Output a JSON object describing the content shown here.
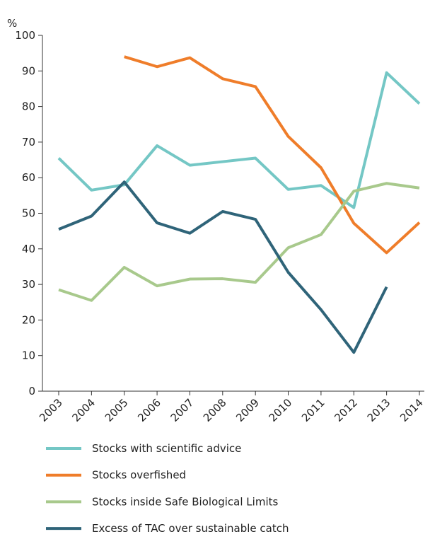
{
  "chart_data": {
    "type": "line",
    "y_label": "%",
    "categories": [
      "2003",
      "2004",
      "2005",
      "2006",
      "2007",
      "2008",
      "2009",
      "2010",
      "2011",
      "2012",
      "2013",
      "2014"
    ],
    "series": [
      {
        "name": "Stocks with scientific advice",
        "color": "#74c7c5",
        "values": [
          65.5,
          56.5,
          58,
          69,
          63.5,
          64.5,
          65.5,
          56.7,
          57.8,
          51.6,
          89.5,
          80.8
        ]
      },
      {
        "name": "Stocks overfished",
        "color": "#ef7d2a",
        "values": [
          null,
          null,
          94,
          91.2,
          93.7,
          87.8,
          85.6,
          71.6,
          62.8,
          47.2,
          38.9,
          47.4
        ]
      },
      {
        "name": "Stocks inside Safe Biological Limits",
        "color": "#a8c98c",
        "values": [
          28.5,
          25.5,
          34.8,
          29.6,
          31.5,
          31.6,
          30.6,
          40.3,
          44,
          56.2,
          58.4,
          57.1
        ]
      },
      {
        "name": "Excess of TAC over sustainable catch",
        "color": "#2f6479",
        "values": [
          45.5,
          49.2,
          58.8,
          47.3,
          44.4,
          50.5,
          48.3,
          33.4,
          22.9,
          10.9,
          29.3,
          null
        ]
      }
    ],
    "ylim": [
      0,
      100
    ],
    "yticks": [
      0,
      10,
      20,
      30,
      40,
      50,
      60,
      70,
      80,
      90,
      100
    ]
  }
}
